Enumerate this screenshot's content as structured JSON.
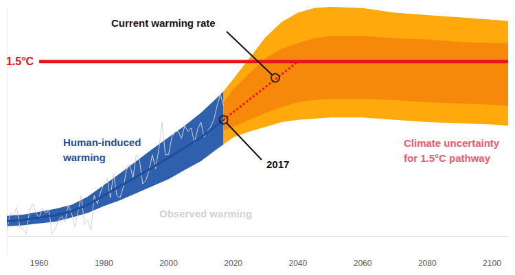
{
  "chart_data": {
    "type": "line",
    "xlim": [
      1950,
      2105
    ],
    "xticks": [
      1960,
      1980,
      2000,
      2020,
      2040,
      2060,
      2080,
      2100
    ],
    "ylim": [
      -0.15,
      1.97
    ],
    "yticks": [],
    "tick_labels": "x",
    "grid": false,
    "series": [
      {
        "name": "Observed warming",
        "type": "line",
        "color": "#d2d2d2",
        "x": [
          1950,
          1951,
          1952,
          1953,
          1954,
          1955,
          1956,
          1957,
          1958,
          1959,
          1960,
          1961,
          1962,
          1963,
          1964,
          1965,
          1966,
          1967,
          1968,
          1969,
          1970,
          1971,
          1972,
          1973,
          1974,
          1975,
          1976,
          1977,
          1978,
          1979,
          1980,
          1981,
          1982,
          1983,
          1984,
          1985,
          1986,
          1987,
          1988,
          1989,
          1990,
          1991,
          1992,
          1993,
          1994,
          1995,
          1996,
          1997,
          1998,
          1999,
          2000,
          2001,
          2002,
          2003,
          2004,
          2005,
          2006,
          2007,
          2008,
          2009,
          2010,
          2011,
          2012,
          2013,
          2014,
          2015,
          2016,
          2017
        ],
        "values": [
          0.05,
          0.2,
          0.18,
          0.25,
          0.08,
          0.06,
          0.02,
          0.22,
          0.28,
          0.2,
          0.16,
          0.24,
          0.2,
          0.22,
          0.02,
          0.07,
          0.14,
          0.17,
          0.12,
          0.27,
          0.2,
          0.08,
          0.21,
          0.35,
          0.1,
          0.14,
          0.05,
          0.35,
          0.28,
          0.38,
          0.45,
          0.5,
          0.33,
          0.54,
          0.35,
          0.33,
          0.42,
          0.57,
          0.62,
          0.5,
          0.7,
          0.66,
          0.45,
          0.48,
          0.57,
          0.7,
          0.58,
          0.75,
          0.98,
          0.7,
          0.7,
          0.85,
          0.9,
          0.9,
          0.84,
          0.95,
          0.9,
          0.93,
          0.8,
          0.92,
          0.98,
          0.85,
          0.9,
          0.94,
          1.0,
          1.12,
          1.22,
          1.12
        ]
      },
      {
        "type": "band",
        "color": "#2f60ad",
        "x": [
          1950,
          1955,
          1960,
          1965,
          1970,
          1975,
          1980,
          1985,
          1990,
          1995,
          2000,
          2005,
          2010,
          2015,
          2017
        ],
        "lower": [
          0.085,
          0.095,
          0.11,
          0.125,
          0.16,
          0.2,
          0.26,
          0.31,
          0.37,
          0.43,
          0.49,
          0.57,
          0.645,
          0.75,
          0.79
        ],
        "upper": [
          0.175,
          0.185,
          0.21,
          0.235,
          0.27,
          0.34,
          0.44,
          0.54,
          0.645,
          0.75,
          0.85,
          0.95,
          1.06,
          1.19,
          1.245
        ]
      },
      {
        "name": "Human-induced warming",
        "type": "line",
        "color": "#1c4e9c",
        "x": [
          1950,
          1955,
          1960,
          1965,
          1970,
          1975,
          1980,
          1985,
          1990,
          1995,
          2000,
          2005,
          2010,
          2015,
          2017
        ],
        "values": [
          0.13,
          0.14,
          0.16,
          0.18,
          0.215,
          0.27,
          0.35,
          0.43,
          0.51,
          0.59,
          0.675,
          0.76,
          0.85,
          0.955,
          1.0
        ]
      },
      {
        "name": "Climate uncertainty for 1.5°C pathway",
        "type": "band",
        "color": "#ffa90c",
        "x": [
          2017,
          2020,
          2025,
          2030,
          2035,
          2040,
          2045,
          2050,
          2060,
          2070,
          2080,
          2090,
          2100,
          2105
        ],
        "lower": [
          0.79,
          0.85,
          0.9,
          0.94,
          0.98,
          1.0,
          1.01,
          1.02,
          1.02,
          1.0,
          0.98,
          0.97,
          0.96,
          0.95
        ],
        "upper": [
          1.245,
          1.35,
          1.53,
          1.71,
          1.84,
          1.92,
          1.96,
          1.97,
          1.96,
          1.92,
          1.9,
          1.88,
          1.86,
          1.85
        ]
      },
      {
        "type": "band",
        "color": "#f7890a",
        "x": [
          2017,
          2020,
          2025,
          2030,
          2035,
          2040,
          2045,
          2050,
          2060,
          2070,
          2080,
          2090,
          2100,
          2105
        ],
        "lower": [
          0.91,
          0.94,
          1.0,
          1.06,
          1.11,
          1.15,
          1.17,
          1.18,
          1.18,
          1.17,
          1.15,
          1.14,
          1.13,
          1.12
        ],
        "upper": [
          1.15,
          1.26,
          1.4,
          1.53,
          1.61,
          1.66,
          1.7,
          1.72,
          1.72,
          1.7,
          1.69,
          1.67,
          1.66,
          1.66
        ]
      },
      {
        "type": "line",
        "color": "#e8141c",
        "line_style": "dotted",
        "x": [
          2017,
          2040
        ],
        "values": [
          1.0,
          1.5
        ]
      }
    ],
    "threshold": {
      "value": 1.5,
      "label": "1.5°C",
      "color": "#e8141c",
      "x": [
        1960,
        2105
      ]
    },
    "annotations": {
      "marker": "circle",
      "color": "#111111",
      "points": [
        {
          "text": "Current warming rate",
          "x": 2033,
          "y": 1.36
        },
        {
          "text": "2017",
          "x": 2017,
          "y": 1.0
        }
      ]
    }
  }
}
